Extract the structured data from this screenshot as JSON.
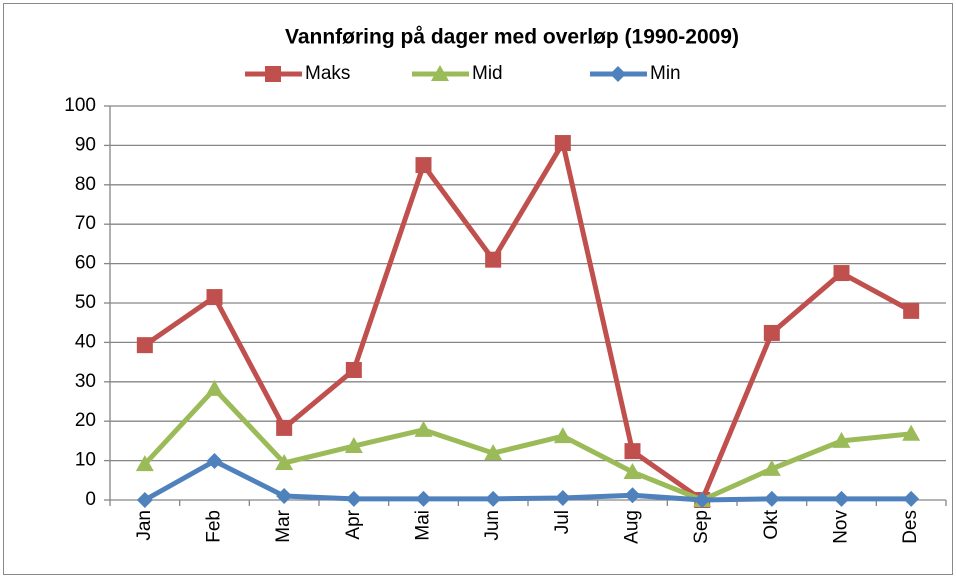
{
  "chart_data": {
    "type": "line",
    "title": "Vannføring på dager med overløp (1990-2009)",
    "categories": [
      "Jan",
      "Feb",
      "Mar",
      "Apr",
      "Mai",
      "Jun",
      "Jul",
      "Aug",
      "Sep",
      "Okt",
      "Nov",
      "Des"
    ],
    "series": [
      {
        "name": "Maks",
        "color": "#c0504d",
        "marker": "square",
        "values": [
          39.3,
          51.5,
          18.3,
          33,
          85,
          61,
          90.6,
          12.4,
          0,
          42.4,
          57.6,
          48
        ]
      },
      {
        "name": "Mid",
        "color": "#9bbb59",
        "marker": "triangle",
        "values": [
          9.1,
          28.2,
          9.4,
          13.7,
          17.8,
          11.9,
          16.2,
          7.1,
          0,
          7.9,
          15,
          16.8
        ]
      },
      {
        "name": "Min",
        "color": "#4f81bd",
        "marker": "diamond",
        "values": [
          0,
          9.9,
          1,
          0.3,
          0.3,
          0.3,
          0.5,
          1.2,
          0,
          0.3,
          0.3,
          0.3
        ]
      }
    ],
    "ylim": [
      0,
      100
    ],
    "yticks": [
      0,
      10,
      20,
      30,
      40,
      50,
      60,
      70,
      80,
      90,
      100
    ],
    "grid": true,
    "legend": "top"
  }
}
